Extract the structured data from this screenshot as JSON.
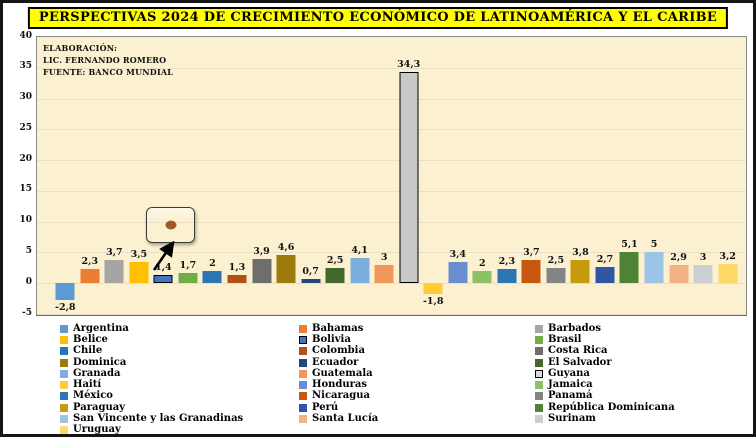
{
  "title": "PERSPECTIVAS 2024 DE CRECIMIENTO ECONÓMICO DE LATINOAMÉRICA Y EL CARIBE",
  "source_note": {
    "line1": "ELABORACIÓN:",
    "line2": "LIC. FERNANDO ROMERO",
    "line3": "FUENTE: BANCO MUNDIAL"
  },
  "chart_data": {
    "type": "bar",
    "title": "PERSPECTIVAS 2024 DE CRECIMIENTO ECONÓMICO DE LATINOAMÉRICA Y EL CARIBE",
    "xlabel": "",
    "ylabel": "",
    "ylim": [
      -5,
      40
    ],
    "yticks": [
      40,
      35,
      30,
      25,
      20,
      15,
      10,
      5,
      0,
      -5
    ],
    "grid": true,
    "legend_position": "bottom",
    "decimal_separator": "comma",
    "series": [
      {
        "name": "Argentina",
        "value": -2.8,
        "label": "-2,8",
        "color": "#5B9BD5",
        "outlined": false
      },
      {
        "name": "Bahamas",
        "value": 2.3,
        "label": "2,3",
        "color": "#ED7D31",
        "outlined": false
      },
      {
        "name": "Barbados",
        "value": 3.7,
        "label": "3,7",
        "color": "#A5A5A5",
        "outlined": false
      },
      {
        "name": "Belice",
        "value": 3.5,
        "label": "3,5",
        "color": "#FFC000",
        "outlined": false
      },
      {
        "name": "Bolivia",
        "value": 1.4,
        "label": "1,4",
        "color": "#4472C4",
        "outlined": true
      },
      {
        "name": "Brasil",
        "value": 1.7,
        "label": "1,7",
        "color": "#70AD47",
        "outlined": false
      },
      {
        "name": "Chile",
        "value": 2,
        "label": "2",
        "color": "#2E75B6",
        "outlined": false
      },
      {
        "name": "Colombia",
        "value": 1.3,
        "label": "1,3",
        "color": "#B25117",
        "outlined": false
      },
      {
        "name": "Costa Rica",
        "value": 3.9,
        "label": "3,9",
        "color": "#6E6E6E",
        "outlined": false
      },
      {
        "name": "Dominica",
        "value": 4.6,
        "label": "4,6",
        "color": "#9C7A0B",
        "outlined": false
      },
      {
        "name": "Ecuador",
        "value": 0.7,
        "label": "0,7",
        "color": "#24477F",
        "outlined": false
      },
      {
        "name": "El Salvador",
        "value": 2.5,
        "label": "2,5",
        "color": "#44682C",
        "outlined": false
      },
      {
        "name": "Granada",
        "value": 4.1,
        "label": "4,1",
        "color": "#7CAFDD",
        "outlined": false
      },
      {
        "name": "Guatemala",
        "value": 3,
        "label": "3",
        "color": "#F0975A",
        "outlined": false
      },
      {
        "name": "Guyana",
        "value": 34.3,
        "label": "34,3",
        "color": "#C9C9C9",
        "outlined": true
      },
      {
        "name": "Haití",
        "value": -1.8,
        "label": "-1,8",
        "color": "#FFCD33",
        "outlined": false
      },
      {
        "name": "Honduras",
        "value": 3.4,
        "label": "3,4",
        "color": "#698ED0",
        "outlined": false
      },
      {
        "name": "Jamaica",
        "value": 2,
        "label": "2",
        "color": "#8CC168",
        "outlined": false
      },
      {
        "name": "México",
        "value": 2.3,
        "label": "2,3",
        "color": "#2E75B6",
        "outlined": false
      },
      {
        "name": "Nicaragua",
        "value": 3.7,
        "label": "3,7",
        "color": "#C9570F",
        "outlined": false
      },
      {
        "name": "Panamá",
        "value": 2.5,
        "label": "2,5",
        "color": "#848484",
        "outlined": false
      },
      {
        "name": "Paraguay",
        "value": 3.8,
        "label": "3,8",
        "color": "#C99A0B",
        "outlined": false
      },
      {
        "name": "Perú",
        "value": 2.7,
        "label": "2,7",
        "color": "#2F55A4",
        "outlined": false
      },
      {
        "name": "República Dominicana",
        "value": 5.1,
        "label": "5,1",
        "color": "#4E8234",
        "outlined": false
      },
      {
        "name": "San Vincente y las Granadinas",
        "value": 5,
        "label": "5",
        "color": "#9DC3E6",
        "outlined": false
      },
      {
        "name": "Santa Lucía",
        "value": 2.9,
        "label": "2,9",
        "color": "#F4B183",
        "outlined": false
      },
      {
        "name": "Surinam",
        "value": 3,
        "label": "3",
        "color": "#CDD0D3",
        "outlined": false
      },
      {
        "name": "Uruguay",
        "value": 3.2,
        "label": "3,2",
        "color": "#FFD966",
        "outlined": false
      }
    ],
    "annotation": {
      "type": "flag",
      "country": "Bolivia",
      "flag_colors": [
        "#D52B1E",
        "#F4E400",
        "#007934"
      ]
    }
  },
  "style": {
    "frame_bg": "#FFFFFF",
    "title_bg": "#FFFF00",
    "plot_bg": "#FBF0D0",
    "grid_color": "#EAE0C8",
    "legend_marker_guyana_fill": "#D9D9D9"
  }
}
